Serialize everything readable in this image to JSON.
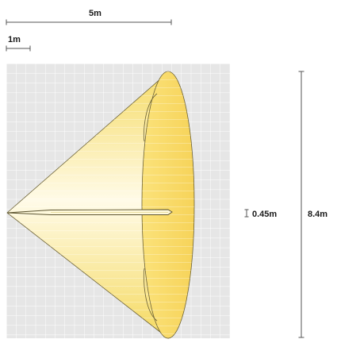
{
  "diagram": {
    "colors": {
      "grid_background": "#e6e6e6",
      "grid_lines": "#ffffff",
      "beam_outer": "#f5d95e",
      "beam_inner": "#fffbe8",
      "beam_outline": "#6b6136",
      "dimension_lines": "#555555",
      "text": "#1a1a1a"
    },
    "dimensions": {
      "beam_length": "5m",
      "scale_unit": "1m",
      "fixture_height": "0.45m",
      "beam_diameter": "8.4m"
    }
  }
}
